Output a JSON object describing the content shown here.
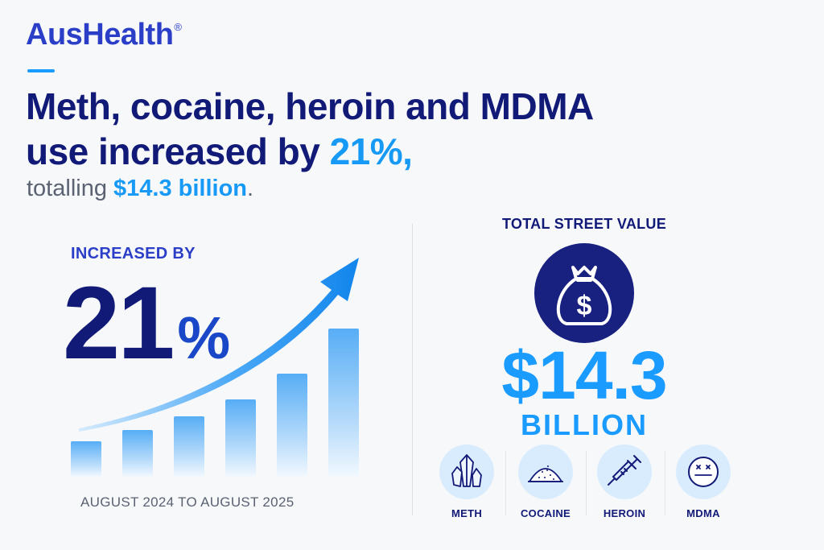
{
  "brand": {
    "name": "AusHealth",
    "registered_mark": "®"
  },
  "headline": {
    "line1": "Meth, cocaine, heroin and MDMA",
    "line2_prefix": "use increased by ",
    "line2_highlight": "21%,",
    "sub_prefix": "totalling ",
    "sub_highlight": "$14.3 billion",
    "sub_suffix": "."
  },
  "increase": {
    "label": "INCREASED BY",
    "number": "21",
    "percent_sign": "%",
    "period": "AUGUST 2024 TO AUGUST 2025"
  },
  "street_value": {
    "label": "TOTAL STREET VALUE",
    "icon": "money-bag-icon",
    "amount": "$14.3",
    "unit": "BILLION"
  },
  "drugs": [
    {
      "name": "METH",
      "icon": "crystal-icon"
    },
    {
      "name": "COCAINE",
      "icon": "powder-pile-icon"
    },
    {
      "name": "HEROIN",
      "icon": "syringe-icon"
    },
    {
      "name": "MDMA",
      "icon": "pill-icon"
    }
  ],
  "colors": {
    "navy": "#121a78",
    "brand_blue": "#2a3ec7",
    "accent_blue": "#169af5",
    "light_blue": "#d9ecfd"
  }
}
